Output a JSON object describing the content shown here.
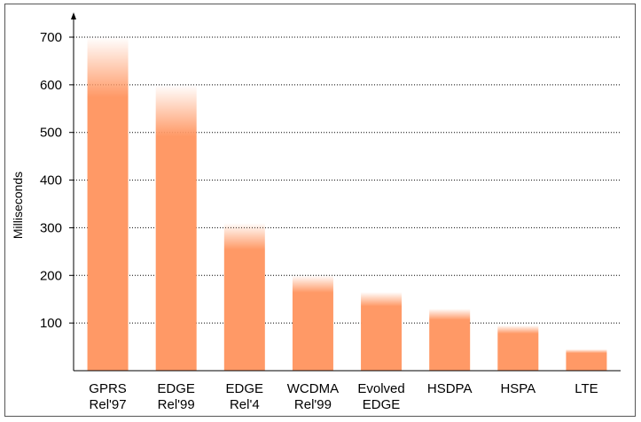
{
  "chart_data": {
    "type": "bar",
    "ylabel": "Milliseconds",
    "ylim": [
      0,
      700
    ],
    "yticks": [
      100,
      200,
      300,
      400,
      500,
      600,
      700
    ],
    "grid": true,
    "categories": [
      [
        "GPRS",
        "Rel'97"
      ],
      [
        "EDGE",
        "Rel'99"
      ],
      [
        "EDGE",
        "Rel'4"
      ],
      [
        "WCDMA",
        "Rel'99"
      ],
      [
        "Evolved",
        "EDGE"
      ],
      [
        "HSDPA"
      ],
      [
        "HSPA"
      ],
      [
        "LTE"
      ]
    ],
    "values": [
      700,
      600,
      310,
      200,
      165,
      130,
      95,
      45
    ],
    "colors": {
      "bar": "#FF9966",
      "grid": "#000000",
      "axis": "#000000"
    }
  }
}
